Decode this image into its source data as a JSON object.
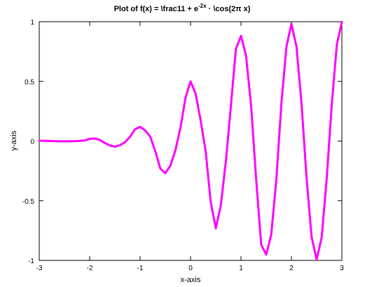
{
  "chart_data": {
    "type": "line",
    "title": "Plot of f(x) = \\frac11 + e",
    "title_superscript": "-2x",
    "title_suffix": " · \\cos(2π x)",
    "xlabel": "x-axis",
    "ylabel": "y-axis",
    "xlim": [
      -3,
      3
    ],
    "ylim": [
      -1,
      1
    ],
    "xticks": [
      -3,
      -2,
      -1,
      0,
      1,
      2,
      3
    ],
    "xtick_labels": [
      "-3",
      "-2",
      "-1",
      "0",
      "1",
      "2",
      "3"
    ],
    "yticks": [
      -1,
      -0.5,
      0,
      0.5,
      1
    ],
    "ytick_labels": [
      "-1",
      "-0.5",
      "0",
      "0.5",
      "1"
    ],
    "grid": false,
    "series": [
      {
        "color": "#ff00ff",
        "x": [
          -3.0,
          -2.9,
          -2.8,
          -2.7,
          -2.6,
          -2.5,
          -2.4,
          -2.3,
          -2.2,
          -2.1,
          -2.0,
          -1.9,
          -1.8,
          -1.7,
          -1.6,
          -1.5,
          -1.4,
          -1.3,
          -1.2,
          -1.1,
          -1.0,
          -0.9,
          -0.8,
          -0.7,
          -0.6,
          -0.5,
          -0.4,
          -0.3,
          -0.2,
          -0.1,
          0.0,
          0.1,
          0.2,
          0.3,
          0.4,
          0.5,
          0.6,
          0.7,
          0.8,
          0.9,
          1.0,
          1.1,
          1.2,
          1.3,
          1.4,
          1.5,
          1.6,
          1.7,
          1.8,
          1.9,
          2.0,
          2.1,
          2.2,
          2.3,
          2.4,
          2.5,
          2.6,
          2.7,
          2.8,
          2.9,
          3.0
        ],
        "y": [
          0.002,
          0.002,
          0.001,
          -0.001,
          -0.002,
          -0.002,
          -0.002,
          -0.001,
          0.001,
          0.005,
          0.018,
          0.021,
          0.009,
          -0.016,
          -0.037,
          -0.047,
          -0.035,
          -0.01,
          0.036,
          0.099,
          0.119,
          0.089,
          0.037,
          -0.083,
          -0.23,
          -0.269,
          -0.206,
          -0.077,
          0.112,
          0.364,
          0.5,
          0.397,
          0.173,
          -0.087,
          -0.511,
          -0.731,
          -0.538,
          -0.17,
          0.295,
          0.774,
          0.881,
          0.716,
          0.298,
          -0.317,
          -0.867,
          -0.952,
          -0.782,
          -0.328,
          0.309,
          0.789,
          0.982,
          0.791,
          0.313,
          -0.309,
          -0.805,
          -0.993,
          -0.805,
          -0.309,
          0.309,
          0.809,
          0.999
        ]
      }
    ]
  }
}
